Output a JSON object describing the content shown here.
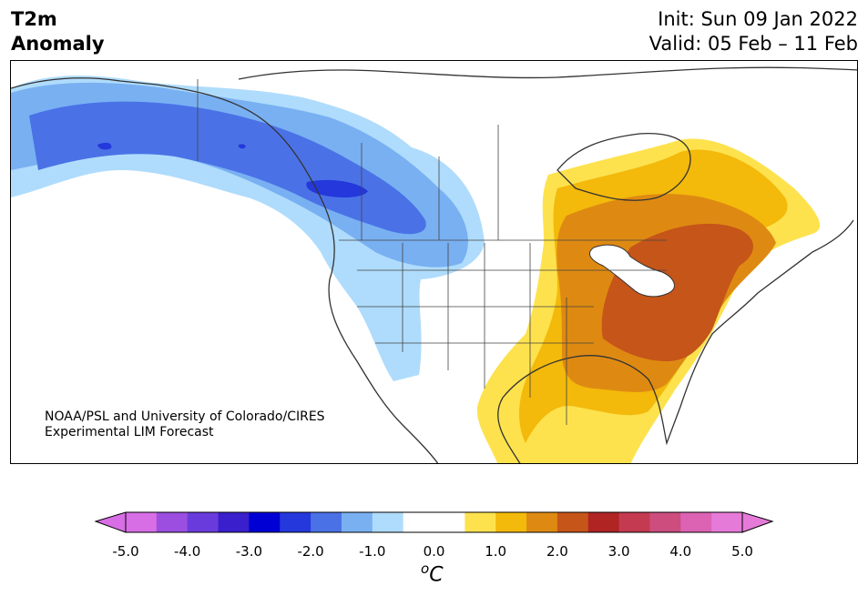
{
  "title": {
    "line1": "T2m",
    "line2": "Anomaly"
  },
  "forecast": {
    "init": "Init: Sun 09 Jan 2022",
    "valid": "Valid: 05 Feb – 11 Feb"
  },
  "credit": {
    "line1": "NOAA/PSL and University of Colorado/CIRES",
    "line2": "Experimental LIM Forecast"
  },
  "colorbar": {
    "ticks": [
      "-5.0",
      "-4.0",
      "-3.0",
      "-2.0",
      "-1.0",
      "0.0",
      "1.0",
      "2.0",
      "3.0",
      "4.0",
      "5.0"
    ],
    "unit_sup": "o",
    "unit": "C",
    "colors": [
      "#d86ee6",
      "#9b4ee0",
      "#6a3bdc",
      "#3a1fcc",
      "#0000d4",
      "#2438dc",
      "#4a72e6",
      "#79b0f2",
      "#afdcfc",
      "#ffffff",
      "#ffffff",
      "#fde24e",
      "#f3b90b",
      "#de8a12",
      "#c65519",
      "#b02424",
      "#c43a50",
      "#cc4d7e",
      "#dc63b4",
      "#e67ad8"
    ],
    "extend_low_color": "#d86ee6",
    "extend_high_color": "#e67ad8"
  },
  "map": {
    "region": "North America",
    "legend_colors": {
      "cold_1": "#afdcfc",
      "cold_2": "#79b0f2",
      "cold_3": "#4a72e6",
      "cold_4": "#2438dc",
      "warm_1": "#fde24e",
      "warm_2": "#f3b90b",
      "warm_3": "#de8a12",
      "warm_4": "#c65519"
    }
  }
}
